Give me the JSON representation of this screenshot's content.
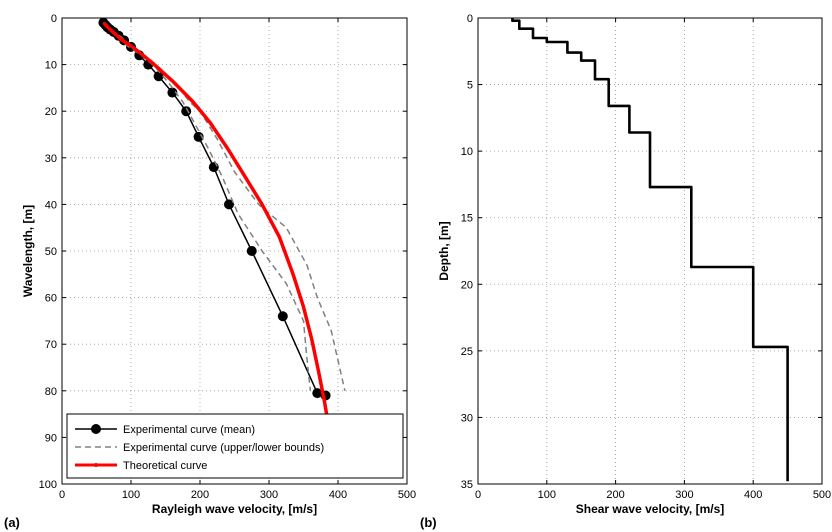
{
  "chart_data": [
    {
      "type": "line",
      "panel_label": "(a)",
      "xlabel": "Rayleigh wave velocity, [m/s]",
      "ylabel": "Wavelength, [m]",
      "xlim": [
        0,
        500
      ],
      "ylim": [
        0,
        100
      ],
      "y_inverted": true,
      "xticks": [
        0,
        100,
        200,
        300,
        400,
        500
      ],
      "yticks": [
        0,
        10,
        20,
        30,
        40,
        50,
        60,
        70,
        80,
        90,
        100
      ],
      "grid": true,
      "legend": "bottom-left",
      "series": [
        {
          "name": "Experimental curve (mean)",
          "color": "#000000",
          "marker": "circle",
          "x": [
            60,
            63,
            66,
            70,
            75,
            82,
            90,
            100,
            112,
            125,
            140,
            160,
            180,
            198,
            220,
            242,
            275,
            320,
            370,
            382
          ],
          "y": [
            1.0,
            1.5,
            2.0,
            2.5,
            3.0,
            3.8,
            4.8,
            6.2,
            8.0,
            10.0,
            12.5,
            16.0,
            20.0,
            25.5,
            32.0,
            40.0,
            50.0,
            64.0,
            80.5,
            81.0
          ]
        },
        {
          "name": "Experimental curve (upper/lower bounds)",
          "color": "#808080",
          "dashed": true,
          "x": [
            60,
            70,
            85,
            100,
            120,
            140,
            165,
            185,
            200,
            225,
            250,
            285,
            325,
            355,
            370,
            390,
            410
          ],
          "y": [
            1,
            2.5,
            4,
            6,
            8,
            10.5,
            14,
            18,
            20,
            26,
            33,
            40,
            45,
            53,
            60,
            67,
            80
          ]
        },
        {
          "name": "",
          "color": "#808080",
          "dashed": true,
          "x": [
            60,
            68,
            80,
            95,
            115,
            135,
            155,
            175,
            190,
            212,
            232,
            255,
            290,
            325,
            350,
            355,
            360
          ],
          "y": [
            1,
            2.5,
            4,
            6,
            8,
            10.5,
            14,
            18,
            22,
            28,
            34,
            42,
            50,
            57,
            65,
            73,
            80
          ]
        },
        {
          "name": "Theoretical curve",
          "color": "#ff0000",
          "x": [
            60,
            70,
            85,
            105,
            130,
            160,
            190,
            215,
            240,
            265,
            290,
            315,
            335,
            350,
            362,
            372,
            380,
            387
          ],
          "y": [
            1,
            2.5,
            4.5,
            6.5,
            9.5,
            13.5,
            18,
            22.5,
            28,
            34,
            40,
            47,
            55,
            62,
            69,
            76,
            82,
            88
          ]
        }
      ]
    },
    {
      "type": "line",
      "panel_label": "(b)",
      "xlabel": "Shear wave velocity, [m/s]",
      "ylabel": "Depth, [m]",
      "xlim": [
        0,
        500
      ],
      "ylim": [
        0,
        35
      ],
      "y_inverted": true,
      "xticks": [
        0,
        100,
        200,
        300,
        400,
        500
      ],
      "yticks": [
        0,
        5,
        10,
        15,
        20,
        25,
        30,
        35
      ],
      "grid": true,
      "series": [
        {
          "name": "",
          "color": "#000000",
          "step_profile": true,
          "x": [
            50,
            60,
            80,
            100,
            130,
            150,
            170,
            190,
            220,
            250,
            310,
            400,
            450
          ],
          "y": [
            0,
            0.2,
            0.8,
            1.5,
            1.8,
            2.6,
            3.2,
            4.6,
            6.6,
            8.6,
            12.7,
            18.7,
            24.7
          ],
          "end_depth": 34.8
        }
      ]
    }
  ]
}
